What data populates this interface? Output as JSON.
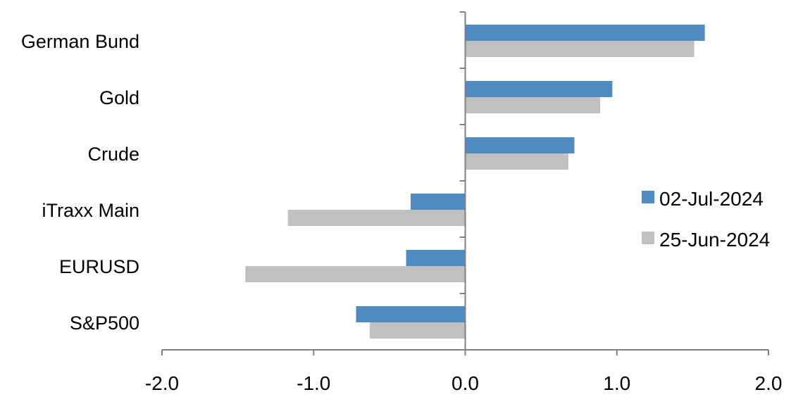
{
  "chart_data": {
    "type": "bar",
    "orientation": "horizontal",
    "categories": [
      "German Bund",
      "Gold",
      "Crude",
      "iTraxx Main",
      "EURUSD",
      "S&P500"
    ],
    "series": [
      {
        "name": "02-Jul-2024",
        "color": "#4f8bc0",
        "values": [
          1.58,
          0.97,
          0.72,
          -0.36,
          -0.39,
          -0.72
        ]
      },
      {
        "name": "25-Jun-2024",
        "color": "#c0c0c0",
        "values": [
          1.51,
          0.89,
          0.68,
          -1.17,
          -1.45,
          -0.63
        ]
      }
    ],
    "xlim": [
      -2.0,
      2.0
    ],
    "xticks": [
      "-2.0",
      "-1.0",
      "0.0",
      "1.0",
      "2.0"
    ],
    "grid": false,
    "legend_position": "right",
    "axis_color": "#808080"
  }
}
